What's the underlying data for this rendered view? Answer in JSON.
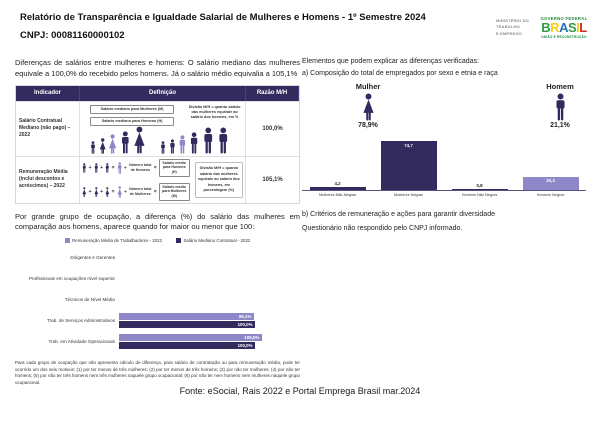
{
  "header": {
    "title": "Relatório de Transparência e Igualdade Salarial de Mulheres e Homens - 1º Semestre 2024",
    "cnpj": "CNPJ: 00081160000102",
    "ministry_logo": {
      "line1": "MINISTÉRIO DO",
      "line2": "TRABALHO",
      "line3": "E EMPREGO"
    },
    "gov_logo": {
      "top": "GOVERNO FEDERAL",
      "brand": "BRASIL",
      "bottom": "UNIÃO E RECONSTRUÇÃO",
      "palette": [
        "#2e9e41",
        "#f7d117",
        "#2b6fb3",
        "#2e9e41",
        "#f7d117",
        "#d52b1e"
      ]
    }
  },
  "intro": "Diferenças de salários entre mulheres e homens: O salário mediano das mulheres equivale a 100,0% do recebido pelos homens. Já o salário médio equivalia a 105,1%",
  "table": {
    "col_indicator": "Indicador",
    "col_definition": "Definição",
    "col_ratio": "Razão M/H",
    "row1": {
      "indicator": "Salário Contratual Mediano (não pago) – 2022",
      "box_women": "Salário mediano para Mulheres (M)",
      "box_men": "Salário mediano para Homens (H)",
      "note": "Divisão M/H = quanto salário das mulheres equivale ao salário dos homens, em %",
      "ratio": "100,0%"
    },
    "row2": {
      "indicator": "Remuneração Média (inclui descontos e acréscimos) – 2022",
      "plus": "+",
      "equals": "=",
      "divide": "÷",
      "men_total": "Número total de Homens",
      "men_result": "Salário médio para Homens (H)",
      "women_total": "Número total de Mulheres",
      "women_result": "Salário médio para Mulheres (M)",
      "note": "Divisão M/H = quanto salário das mulheres equivale ao salário dos homens, em porcentagem (%)",
      "ratio": "105,1%"
    }
  },
  "occupation": {
    "title": "Por grande grupo de ocupação, a diferença (%) do salário das mulheres em comparação aos homens, aparece quando for maior ou menor que 100:",
    "footnote": "Para cada grupo de ocupação que não apresenta cálculo de diferença, para salário de contratação ou para remuneração média, pode ter ocorrido um dos seis motivos: (1) por ter menos de três mulheres; (2) por ter menos de três homens; (3) por não ter mulheres; (4) por não ter homens; (5) por não ter três homens nem três mulheres naquele grupo ocupacional; (6) por não ter nem homens nem mulheres naquele grupo ocupacional."
  },
  "elements": {
    "title": "Elementos que podem explicar as diferenças verificadas:",
    "item_a": "a) Composição do total de empregados por sexo e etnia e raça",
    "female_label": "Mulher",
    "female_pct": "78,9%",
    "male_label": "Homem",
    "male_pct": "21,1%",
    "item_b": "b) Critérios de remuneração e ações para garantir diversidade",
    "item_b_text": "Questionário não respondido pelo CNPJ informado."
  },
  "footer": "Fonte: eSocial, Rais 2022 e Portal Emprega Brasil mar.2024",
  "colors": {
    "dark_purple": "#332a5e",
    "light_purple": "#8f88c8"
  },
  "chart_data": [
    {
      "type": "bar",
      "orientation": "horizontal",
      "title": "Diferença (%) do salário das mulheres em comparação aos homens, por grande grupo de ocupação",
      "categories": [
        "Dirigentes e Gerentes",
        "Profissionais em ocupações nível superior",
        "Técnicos de Nível Médio",
        "Trab. de Serviços Administrativos",
        "Trab. em Atividade Operacionais"
      ],
      "series": [
        {
          "name": "Remuneração Média de Trabalhadores - 2022",
          "color": "#8f88c8",
          "values": [
            null,
            null,
            null,
            99.1,
            105.0
          ],
          "labels": [
            "",
            "",
            "",
            "99,1%",
            "105,0%"
          ]
        },
        {
          "name": "Salário Mediano Contratual - 2022",
          "color": "#332a5e",
          "values": [
            null,
            null,
            null,
            100.0,
            100.0
          ],
          "labels": [
            "",
            "",
            "",
            "100,0%",
            "100,0%"
          ]
        }
      ],
      "xlim": [
        0,
        110
      ],
      "legend_position": "top",
      "grid": false
    },
    {
      "type": "bar",
      "orientation": "vertical",
      "title": "Composição do total de empregados por sexo e etnia e raça (%)",
      "categories": [
        "Mulheres Não Negras",
        "Mulheres Negras",
        "Homens Não Negros",
        "Homens Negros"
      ],
      "values": [
        4.2,
        74.7,
        0.8,
        20.3
      ],
      "labels": [
        "4,2",
        "74,7",
        "0,8",
        "20,3"
      ],
      "colors": [
        "#332a5e",
        "#332a5e",
        "#332a5e",
        "#8f88c8"
      ],
      "ylim": [
        0,
        80
      ],
      "grid": false
    }
  ]
}
